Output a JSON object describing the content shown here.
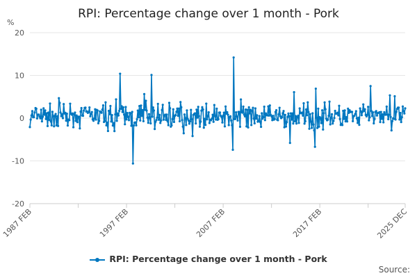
{
  "chart_data": {
    "type": "line",
    "title": "RPI: Percentage change over 1 month - Pork",
    "ylabel": "%",
    "ylim": [
      -20,
      20
    ],
    "yticks": [
      20,
      10,
      0,
      -10,
      -20
    ],
    "xlim": [
      "1987-02",
      "2025-12"
    ],
    "xtick_labels": [
      "1987 FEB",
      "1997 FEB",
      "2007 FEB",
      "2017 FEB",
      "2025 DEC"
    ],
    "grid": true,
    "legend_placement": "bottom",
    "series_color": "#0077c0",
    "series": [
      {
        "name": "RPI: Percentage change over 1 month - Pork",
        "notable_points": [
          {
            "x": "1987-02",
            "y": -2.1
          },
          {
            "x": "1996-06",
            "y": 10.4
          },
          {
            "x": "1997-10",
            "y": -10.6
          },
          {
            "x": "1999-09",
            "y": 10.1
          },
          {
            "x": "2008-03",
            "y": 14.2
          },
          {
            "x": "2008-02",
            "y": -7.4
          },
          {
            "x": "2014-01",
            "y": -5.8
          },
          {
            "x": "2016-09",
            "y": 6.9
          },
          {
            "x": "2016-08",
            "y": -6.7
          },
          {
            "x": "2022-05",
            "y": 7.5
          },
          {
            "x": "2025-12",
            "y": 2.3
          }
        ]
      }
    ]
  },
  "legend": {
    "label": "RPI: Percentage change over 1 month - Pork"
  },
  "source_label": "Source:"
}
